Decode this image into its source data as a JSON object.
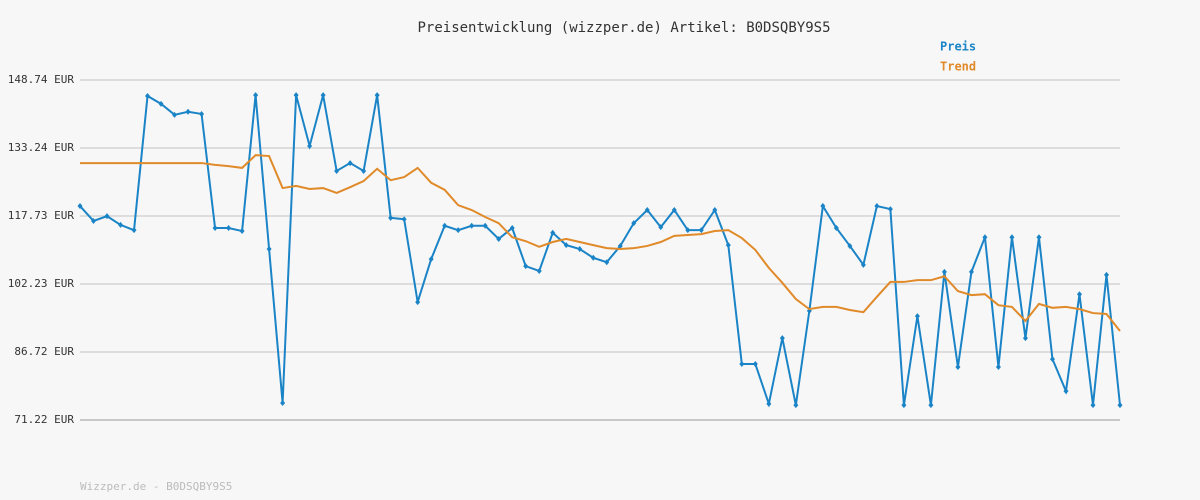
{
  "chart_data": {
    "type": "line",
    "title": "Preisentwicklung (wizzper.de) Artikel: B0DSQBY9S5",
    "footer": "Wizzper.de - B0DSQBY9S5",
    "ylim": [
      71.22,
      148.74
    ],
    "yticks": [
      {
        "value": 71.22,
        "label": "71.22 EUR"
      },
      {
        "value": 86.72,
        "label": "86.72 EUR"
      },
      {
        "value": 102.23,
        "label": "102.23 EUR"
      },
      {
        "value": 117.73,
        "label": "117.73 EUR"
      },
      {
        "value": 133.24,
        "label": "133.24 EUR"
      },
      {
        "value": 148.74,
        "label": "148.74 EUR"
      }
    ],
    "grid": true,
    "legend": "top-right",
    "series": [
      {
        "name": "Preis",
        "color": "#1a84c7",
        "markers": true,
        "values": [
          120.0,
          116.6,
          117.7,
          115.7,
          114.5,
          145.1,
          143.3,
          140.8,
          141.5,
          141.0,
          115.0,
          115.0,
          114.3,
          145.3,
          110.2,
          75.1,
          145.3,
          133.7,
          145.3,
          128.0,
          129.8,
          128.0,
          145.3,
          117.3,
          117.0,
          98.1,
          107.9,
          115.5,
          114.5,
          115.5,
          115.5,
          112.5,
          115.0,
          106.3,
          105.2,
          113.9,
          111.1,
          110.2,
          108.2,
          107.2,
          110.9,
          116.1,
          119.1,
          115.2,
          119.1,
          114.5,
          114.5,
          119.1,
          111.1,
          84.0,
          84.0,
          74.9,
          89.9,
          74.6,
          96.1,
          120.0,
          115.0,
          110.9,
          106.6,
          120.0,
          119.3,
          74.6,
          94.9,
          74.6,
          105.0,
          83.3,
          105.0,
          112.9,
          83.3,
          112.9,
          89.9,
          112.9,
          85.1,
          77.8,
          99.9,
          74.6,
          104.3,
          74.6
        ]
      },
      {
        "name": "Trend",
        "color": "#e08a2a",
        "markers": false,
        "values": [
          129.8,
          129.8,
          129.8,
          129.8,
          129.8,
          129.8,
          129.8,
          129.8,
          129.8,
          129.8,
          129.4,
          129.1,
          128.7,
          131.6,
          131.4,
          124.1,
          124.6,
          123.9,
          124.1,
          123.0,
          124.3,
          125.7,
          128.5,
          125.9,
          126.6,
          128.7,
          125.3,
          123.7,
          120.2,
          119.1,
          117.5,
          116.1,
          112.9,
          112.0,
          110.7,
          111.8,
          112.5,
          111.8,
          111.1,
          110.4,
          110.2,
          110.4,
          110.9,
          111.8,
          113.2,
          113.4,
          113.6,
          114.3,
          114.5,
          112.7,
          110.0,
          105.9,
          102.5,
          98.8,
          96.5,
          97.0,
          97.0,
          96.3,
          95.8,
          99.3,
          102.7,
          102.7,
          103.1,
          103.1,
          104.0,
          100.6,
          99.7,
          99.9,
          97.4,
          97.0,
          93.8,
          97.7,
          96.8,
          97.0,
          96.5,
          95.6,
          95.4,
          91.5
        ]
      }
    ]
  }
}
